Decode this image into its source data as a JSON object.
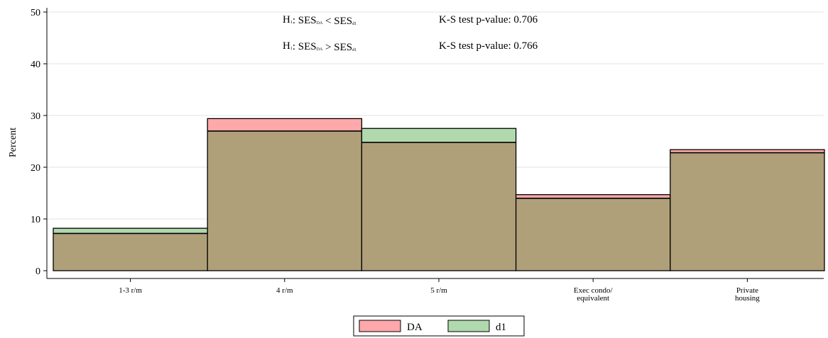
{
  "chart_data": {
    "type": "bar",
    "ylabel": "Percent",
    "xlabel": "",
    "ylim": [
      0,
      50
    ],
    "yticks": [
      0,
      10,
      20,
      30,
      40,
      50
    ],
    "categories": [
      "1-3 r/m",
      "4 r/m",
      "5 r/m",
      "Exec condo/\nequivalent",
      "Private\nhousing"
    ],
    "series": [
      {
        "name": "DA",
        "color": "#ffa8ab",
        "values": [
          7.2,
          29.4,
          24.8,
          14.7,
          23.4
        ]
      },
      {
        "name": "d1",
        "color": "#b0d9ae",
        "values": [
          8.2,
          27.0,
          27.5,
          14.0,
          22.8
        ]
      }
    ],
    "overlap_color": "#b0a07a",
    "legend_position": "bottom-center",
    "grid": true,
    "annotations": [
      {
        "hyp_main": "H",
        "hyp_sub": "1",
        "left_main": "SES",
        "left_sub": "DA",
        "op": "<",
        "right_main": "SES",
        "right_sub": "d1",
        "test": "K-S test p-value: 0.706"
      },
      {
        "hyp_main": "H",
        "hyp_sub": "1",
        "left_main": "SES",
        "left_sub": "DA",
        "op": ">",
        "right_main": "SES",
        "right_sub": "d1",
        "test": "K-S test p-value: 0.766"
      }
    ]
  }
}
